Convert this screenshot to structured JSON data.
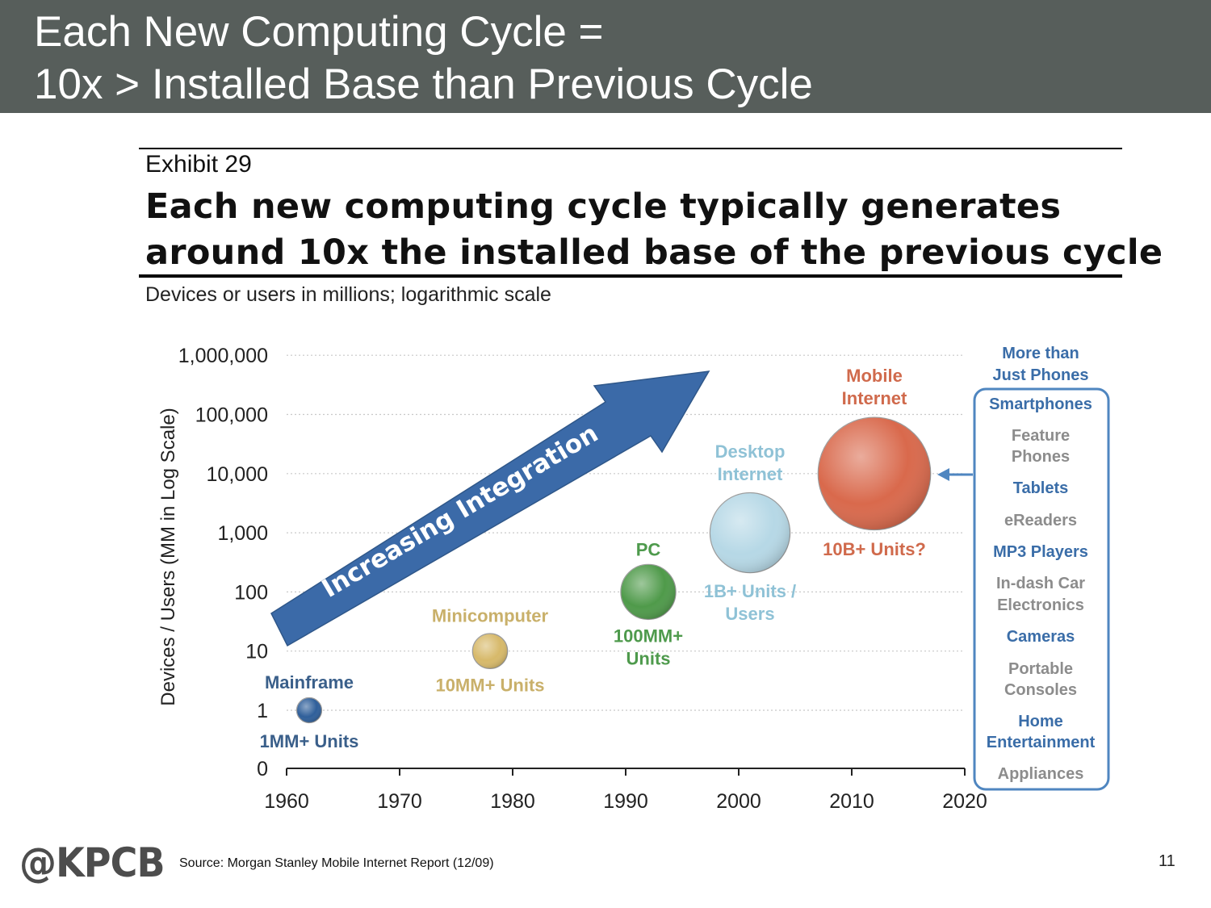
{
  "slide": {
    "title_line1": "Each New Computing Cycle =",
    "title_line2": "10x > Installed Base than Previous Cycle",
    "exhibit": "Exhibit 29",
    "headline_line1": "Each new computing cycle typically generates",
    "headline_line2": "around 10x the installed base of the previous cycle",
    "subtitle": "Devices or users in millions; logarithmic scale",
    "source": "Source: Morgan Stanley Mobile Internet Report (12/09)",
    "logo": "@KPCB",
    "page_number": "11"
  },
  "chart_data": {
    "type": "scatter",
    "ylabel": "Devices / Users (MM in Log Scale)",
    "y_scale": "log",
    "grid": true,
    "xlim": [
      1960,
      2020
    ],
    "x_ticks": [
      "1960",
      "1970",
      "1980",
      "1990",
      "2000",
      "2010",
      "2020"
    ],
    "y_ticks": [
      "1,000,000",
      "100,000",
      "10,000",
      "1,000",
      "100",
      "10",
      "1",
      "0"
    ],
    "points": [
      {
        "name": "Mainframe",
        "x": 1962,
        "y": 1,
        "size": 1,
        "units": "1MM+ Units",
        "color": "#2f5f9a",
        "name_color": "#3a5f8a",
        "units_color": "#3a5f8a"
      },
      {
        "name": "Minicomputer",
        "x": 1978,
        "y": 10,
        "size": 1.4,
        "units": "10MM+ Units",
        "color": "#d7b96a",
        "name_color": "#c9b06a",
        "units_color": "#c9b06a"
      },
      {
        "name": "PC",
        "x": 1992,
        "y": 100,
        "size": 2.2,
        "units": "100MM+ Units",
        "color": "#4f9a4a",
        "name_color": "#4e9a4c",
        "units_color": "#4e9a4c"
      },
      {
        "name": "Desktop Internet",
        "x": 2001,
        "y": 1000,
        "size": 3.2,
        "units": "1B+ Units / Users",
        "color": "#b6d8e6",
        "name_color": "#8fc2d6",
        "units_color": "#8fc2d6"
      },
      {
        "name": "Mobile Internet",
        "x": 2012,
        "y": 10000,
        "size": 4.5,
        "units": "10B+ Units?",
        "color": "#d9694c",
        "name_color": "#d06a4c",
        "units_color": "#d06a4c"
      }
    ],
    "arrow_label": "Increasing Integration",
    "sidebar": {
      "header": "More than Just Phones",
      "items": [
        {
          "label": "Smartphones",
          "color": "#3a6da8"
        },
        {
          "label": "Feature Phones",
          "color": "#8c8c8c"
        },
        {
          "label": "Tablets",
          "color": "#3a6da8"
        },
        {
          "label": "eReaders",
          "color": "#8c8c8c"
        },
        {
          "label": "MP3 Players",
          "color": "#3a6da8"
        },
        {
          "label": "In-dash Car Electronics",
          "color": "#8c8c8c"
        },
        {
          "label": "Cameras",
          "color": "#3a6da8"
        },
        {
          "label": "Portable Consoles",
          "color": "#8c8c8c"
        },
        {
          "label": "Home Entertainment",
          "color": "#3a6da8"
        },
        {
          "label": "Appliances",
          "color": "#8c8c8c"
        }
      ]
    },
    "colors": {
      "arrow": "#3b6aa8",
      "grid": "#c8c8c8",
      "axis": "#222222",
      "sidebar_border": "#4f86c0"
    }
  }
}
